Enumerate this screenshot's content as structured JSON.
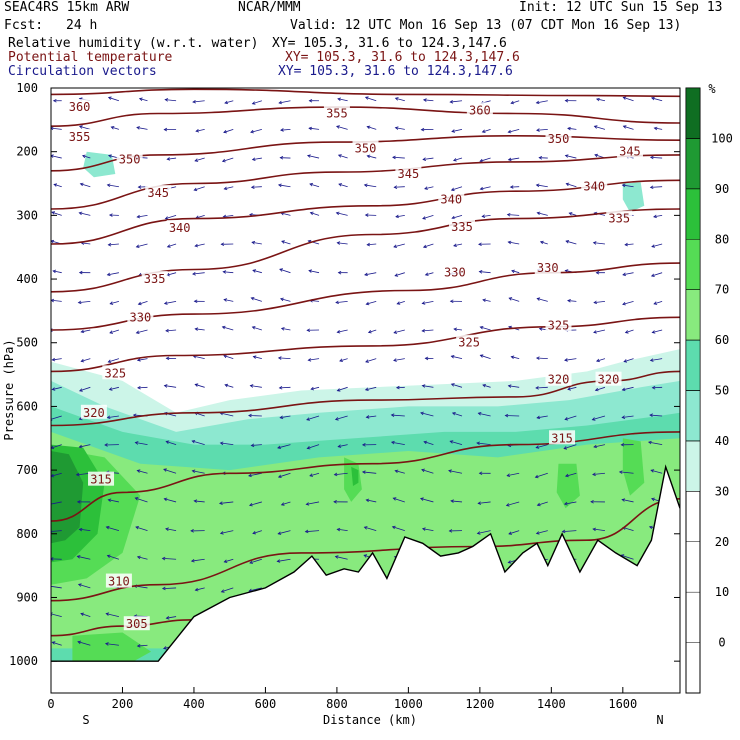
{
  "header": {
    "model": "SEAC4RS 15km ARW",
    "org": "NCAR/MMM",
    "init": "Init: 12 UTC Sun 15 Sep 13",
    "fcst_label": "Fcst:",
    "fcst_value": "24 h",
    "valid": "Valid: 12 UTC Mon 16 Sep 13 (07 CDT Mon 16 Sep 13)"
  },
  "fields": [
    {
      "name": "Relative humidity (w.r.t. water)",
      "xy": "XY= 105.3, 31.6 to 124.3,147.6",
      "color": "#000000"
    },
    {
      "name": "Potential temperature",
      "xy": "XY= 105.3, 31.6 to 124.3,147.6",
      "color": "#7a1414"
    },
    {
      "name": "Circulation vectors",
      "xy": "XY= 105.3, 31.6 to 124.3,147.6",
      "color": "#1a1a8c"
    }
  ],
  "chart_data": {
    "type": "contour",
    "xlabel": "Distance (km)",
    "ylabel": "Pressure (hPa)",
    "xlim": [
      0,
      1760
    ],
    "ylim": [
      100,
      1050
    ],
    "x_ticks": [
      0,
      200,
      400,
      600,
      800,
      1000,
      1200,
      1400,
      1600
    ],
    "y_ticks": [
      100,
      200,
      300,
      400,
      500,
      600,
      700,
      800,
      900,
      1000
    ],
    "x_end_labels": {
      "left": "S",
      "right": "N"
    },
    "colorbar": {
      "unit": "%",
      "ticks": [
        0,
        10,
        20,
        30,
        40,
        50,
        60,
        70,
        80,
        90,
        100
      ],
      "bands": [
        {
          "from": 30,
          "to": 40,
          "color": "#ccf5e8"
        },
        {
          "from": 40,
          "to": 50,
          "color": "#8de8d0"
        },
        {
          "from": 50,
          "to": 60,
          "color": "#5ddcae"
        },
        {
          "from": 60,
          "to": 70,
          "color": "#88ea7e"
        },
        {
          "from": 70,
          "to": 80,
          "color": "#55dc55"
        },
        {
          "from": 80,
          "to": 90,
          "color": "#2cc03a"
        },
        {
          "from": 90,
          "to": 100,
          "color": "#1f9a33"
        },
        {
          "from": 100,
          "to": 110,
          "color": "#0f6e22"
        }
      ]
    },
    "theta_contours": [
      {
        "theta": 360,
        "p": [
          [
            0,
            110
          ],
          [
            400,
            102
          ],
          [
            1000,
            110
          ],
          [
            1500,
            112
          ],
          [
            1760,
            113
          ]
        ]
      },
      {
        "theta": 355,
        "p": [
          [
            0,
            160
          ],
          [
            300,
            140
          ],
          [
            800,
            130
          ],
          [
            1300,
            140
          ],
          [
            1760,
            155
          ]
        ]
      },
      {
        "theta": 350,
        "p": [
          [
            0,
            230
          ],
          [
            300,
            205
          ],
          [
            800,
            185
          ],
          [
            1300,
            175
          ],
          [
            1760,
            182
          ]
        ]
      },
      {
        "theta": 345,
        "p": [
          [
            0,
            290
          ],
          [
            400,
            250
          ],
          [
            800,
            232
          ],
          [
            1300,
            216
          ],
          [
            1760,
            205
          ]
        ]
      },
      {
        "theta": 340,
        "p": [
          [
            0,
            345
          ],
          [
            400,
            305
          ],
          [
            900,
            285
          ],
          [
            1300,
            262
          ],
          [
            1760,
            245
          ]
        ]
      },
      {
        "theta": 335,
        "p": [
          [
            0,
            420
          ],
          [
            400,
            385
          ],
          [
            900,
            330
          ],
          [
            1300,
            305
          ],
          [
            1760,
            290
          ]
        ]
      },
      {
        "theta": 330,
        "p": [
          [
            0,
            480
          ],
          [
            400,
            455
          ],
          [
            1000,
            418
          ],
          [
            1400,
            390
          ],
          [
            1760,
            375
          ]
        ]
      },
      {
        "theta": 325,
        "p": [
          [
            0,
            545
          ],
          [
            350,
            520
          ],
          [
            900,
            505
          ],
          [
            1400,
            475
          ],
          [
            1760,
            460
          ]
        ]
      },
      {
        "theta": 320,
        "p": [
          [
            0,
            630
          ],
          [
            400,
            610
          ],
          [
            900,
            590
          ],
          [
            1300,
            585
          ],
          [
            1560,
            560
          ],
          [
            1760,
            545
          ]
        ]
      },
      {
        "theta": 315,
        "p": [
          [
            0,
            780
          ],
          [
            200,
            735
          ],
          [
            500,
            705
          ],
          [
            900,
            690
          ],
          [
            1300,
            660
          ],
          [
            1760,
            640
          ]
        ]
      },
      {
        "theta": 310,
        "p": [
          [
            0,
            905
          ],
          [
            300,
            880
          ],
          [
            700,
            830
          ],
          [
            1200,
            820
          ],
          [
            1500,
            810
          ],
          [
            1760,
            745
          ]
        ]
      },
      {
        "theta": 305,
        "p": [
          [
            0,
            960
          ],
          [
            200,
            945
          ],
          [
            400,
            935
          ]
        ]
      }
    ],
    "theta_labels": [
      {
        "text": "360",
        "x": 80,
        "p": 130
      },
      {
        "text": "355",
        "x": 80,
        "p": 177
      },
      {
        "text": "350",
        "x": 220,
        "p": 212
      },
      {
        "text": "345",
        "x": 300,
        "p": 265
      },
      {
        "text": "340",
        "x": 360,
        "p": 320
      },
      {
        "text": "335",
        "x": 290,
        "p": 400
      },
      {
        "text": "330",
        "x": 250,
        "p": 460
      },
      {
        "text": "325",
        "x": 180,
        "p": 548
      },
      {
        "text": "320",
        "x": 120,
        "p": 610
      },
      {
        "text": "315",
        "x": 140,
        "p": 715
      },
      {
        "text": "310",
        "x": 190,
        "p": 875
      },
      {
        "text": "305",
        "x": 240,
        "p": 942
      },
      {
        "text": "355",
        "x": 800,
        "p": 140
      },
      {
        "text": "350",
        "x": 880,
        "p": 195
      },
      {
        "text": "345",
        "x": 1000,
        "p": 235
      },
      {
        "text": "340",
        "x": 1120,
        "p": 275
      },
      {
        "text": "335",
        "x": 1150,
        "p": 318
      },
      {
        "text": "330",
        "x": 1130,
        "p": 390
      },
      {
        "text": "325",
        "x": 1170,
        "p": 500
      },
      {
        "text": "360",
        "x": 1200,
        "p": 135
      },
      {
        "text": "350",
        "x": 1420,
        "p": 180
      },
      {
        "text": "345",
        "x": 1620,
        "p": 200
      },
      {
        "text": "340",
        "x": 1520,
        "p": 255
      },
      {
        "text": "335",
        "x": 1590,
        "p": 305
      },
      {
        "text": "330",
        "x": 1390,
        "p": 383
      },
      {
        "text": "325",
        "x": 1420,
        "p": 473
      },
      {
        "text": "320",
        "x": 1420,
        "p": 558
      },
      {
        "text": "320",
        "x": 1560,
        "p": 558
      },
      {
        "text": "315",
        "x": 1430,
        "p": 650
      },
      {
        "text": "305",
        "x": 1560,
        "p": 880
      }
    ],
    "terrain": [
      [
        0,
        1000
      ],
      [
        300,
        1000
      ],
      [
        400,
        930
      ],
      [
        500,
        900
      ],
      [
        600,
        885
      ],
      [
        680,
        860
      ],
      [
        730,
        835
      ],
      [
        770,
        865
      ],
      [
        820,
        855
      ],
      [
        860,
        860
      ],
      [
        900,
        830
      ],
      [
        940,
        870
      ],
      [
        990,
        805
      ],
      [
        1040,
        815
      ],
      [
        1090,
        835
      ],
      [
        1140,
        830
      ],
      [
        1180,
        820
      ],
      [
        1230,
        800
      ],
      [
        1270,
        860
      ],
      [
        1320,
        830
      ],
      [
        1360,
        815
      ],
      [
        1390,
        850
      ],
      [
        1430,
        800
      ],
      [
        1480,
        860
      ],
      [
        1530,
        810
      ],
      [
        1580,
        830
      ],
      [
        1640,
        850
      ],
      [
        1680,
        810
      ],
      [
        1720,
        695
      ],
      [
        1760,
        760
      ]
    ],
    "rh_regions": [
      {
        "band": 30,
        "p": [
          [
            0,
            530
          ],
          [
            200,
            560
          ],
          [
            350,
            610
          ],
          [
            500,
            590
          ],
          [
            700,
            575
          ],
          [
            900,
            570
          ],
          [
            1100,
            565
          ],
          [
            1300,
            560
          ],
          [
            1500,
            545
          ],
          [
            1600,
            530
          ],
          [
            1760,
            510
          ],
          [
            1760,
            1000
          ],
          [
            0,
            1000
          ]
        ]
      },
      {
        "band": 40,
        "p": [
          [
            0,
            560
          ],
          [
            150,
            600
          ],
          [
            350,
            640
          ],
          [
            550,
            620
          ],
          [
            750,
            610
          ],
          [
            1000,
            600
          ],
          [
            1250,
            600
          ],
          [
            1450,
            590
          ],
          [
            1650,
            570
          ],
          [
            1760,
            560
          ],
          [
            1760,
            1000
          ],
          [
            0,
            1000
          ]
        ]
      },
      {
        "band": 50,
        "p": [
          [
            0,
            600
          ],
          [
            200,
            640
          ],
          [
            400,
            660
          ],
          [
            600,
            660
          ],
          [
            850,
            650
          ],
          [
            1100,
            640
          ],
          [
            1300,
            640
          ],
          [
            1500,
            630
          ],
          [
            1700,
            615
          ],
          [
            1760,
            610
          ],
          [
            1760,
            1000
          ],
          [
            0,
            1000
          ]
        ]
      },
      {
        "band": 60,
        "p": [
          [
            0,
            640
          ],
          [
            250,
            690
          ],
          [
            500,
            700
          ],
          [
            750,
            680
          ],
          [
            1000,
            670
          ],
          [
            1250,
            680
          ],
          [
            1500,
            660
          ],
          [
            1760,
            650
          ],
          [
            1760,
            980
          ],
          [
            0,
            980
          ]
        ]
      },
      {
        "band": 70,
        "p": [
          [
            0,
            665
          ],
          [
            150,
            680
          ],
          [
            250,
            740
          ],
          [
            200,
            830
          ],
          [
            100,
            870
          ],
          [
            0,
            880
          ]
        ]
      },
      {
        "band": 80,
        "p": [
          [
            0,
            660
          ],
          [
            90,
            665
          ],
          [
            150,
            720
          ],
          [
            130,
            800
          ],
          [
            60,
            840
          ],
          [
            0,
            845
          ]
        ]
      },
      {
        "band": 90,
        "p": [
          [
            0,
            670
          ],
          [
            50,
            675
          ],
          [
            90,
            720
          ],
          [
            80,
            790
          ],
          [
            40,
            810
          ],
          [
            0,
            815
          ]
        ]
      },
      {
        "band": 70,
        "p": [
          [
            820,
            680
          ],
          [
            860,
            690
          ],
          [
            870,
            730
          ],
          [
            840,
            750
          ],
          [
            820,
            730
          ]
        ]
      },
      {
        "band": 80,
        "p": [
          [
            840,
            695
          ],
          [
            860,
            700
          ],
          [
            860,
            720
          ],
          [
            845,
            725
          ]
        ]
      },
      {
        "band": 70,
        "p": [
          [
            1420,
            690
          ],
          [
            1470,
            690
          ],
          [
            1480,
            740
          ],
          [
            1440,
            760
          ],
          [
            1415,
            735
          ]
        ]
      },
      {
        "band": 70,
        "p": [
          [
            1600,
            650
          ],
          [
            1650,
            655
          ],
          [
            1660,
            720
          ],
          [
            1620,
            740
          ],
          [
            1600,
            700
          ]
        ]
      },
      {
        "band": 70,
        "p": [
          [
            60,
            960
          ],
          [
            200,
            955
          ],
          [
            280,
            985
          ],
          [
            200,
            1010
          ],
          [
            60,
            1010
          ]
        ]
      },
      {
        "band": 40,
        "p": [
          [
            100,
            200
          ],
          [
            170,
            205
          ],
          [
            180,
            235
          ],
          [
            120,
            240
          ],
          [
            90,
            225
          ]
        ]
      },
      {
        "band": 40,
        "p": [
          [
            1600,
            250
          ],
          [
            1650,
            248
          ],
          [
            1660,
            285
          ],
          [
            1620,
            295
          ],
          [
            1600,
            275
          ]
        ]
      }
    ]
  }
}
